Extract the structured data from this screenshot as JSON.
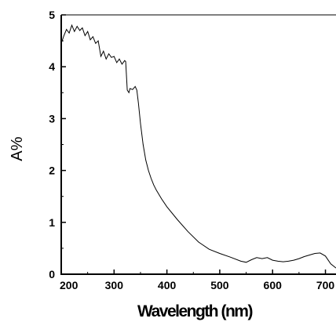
{
  "chart_data": {
    "type": "line",
    "xlabel": "Wavelength (nm)",
    "ylabel": "A%",
    "xlim": [
      200,
      720
    ],
    "ylim": [
      0,
      5
    ],
    "xticks": [
      "200",
      "300",
      "400",
      "500",
      "600",
      "700"
    ],
    "yticks": [
      "0",
      "1",
      "2",
      "3",
      "4",
      "5"
    ],
    "grid": false,
    "line_color": "#000000",
    "series": [
      {
        "x": [
          200,
          205,
          210,
          215,
          220,
          225,
          230,
          235,
          240,
          245,
          250,
          255,
          260,
          265,
          270,
          275,
          280,
          285,
          290,
          295,
          300,
          305,
          310,
          315,
          320,
          322,
          325,
          328,
          330,
          335,
          340,
          343,
          346,
          350,
          355,
          360,
          365,
          370,
          375,
          380,
          390,
          400,
          420,
          440,
          460,
          480,
          500,
          520,
          540,
          550,
          560,
          570,
          580,
          590,
          600,
          610,
          620,
          630,
          640,
          650,
          660,
          670,
          680,
          690,
          700,
          710,
          720
        ],
        "y": [
          4.45,
          4.6,
          4.72,
          4.65,
          4.8,
          4.68,
          4.78,
          4.7,
          4.75,
          4.6,
          4.68,
          4.52,
          4.58,
          4.45,
          4.5,
          4.2,
          4.3,
          4.15,
          4.25,
          4.18,
          4.2,
          4.08,
          4.15,
          4.05,
          4.12,
          4.1,
          3.55,
          3.5,
          3.58,
          3.56,
          3.62,
          3.55,
          3.3,
          2.9,
          2.5,
          2.2,
          2.0,
          1.85,
          1.72,
          1.62,
          1.45,
          1.3,
          1.05,
          0.82,
          0.62,
          0.48,
          0.4,
          0.33,
          0.25,
          0.23,
          0.28,
          0.32,
          0.3,
          0.32,
          0.27,
          0.25,
          0.24,
          0.25,
          0.27,
          0.3,
          0.34,
          0.37,
          0.4,
          0.41,
          0.35,
          0.2,
          0.12
        ]
      }
    ]
  }
}
